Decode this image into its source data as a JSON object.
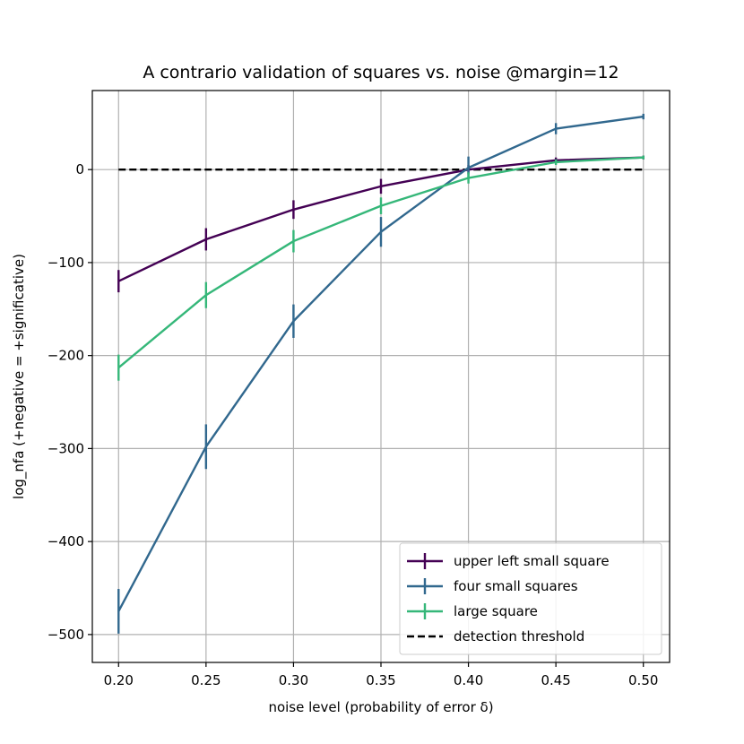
{
  "chart_data": {
    "type": "line",
    "title": "A contrario validation of squares vs. noise @margin=12",
    "xlabel": "noise level (probability of error δ)",
    "ylabel": "log_nfa (+negative = +significative)",
    "x": [
      0.2,
      0.25,
      0.3,
      0.35,
      0.4,
      0.45,
      0.5
    ],
    "x_tick_labels": [
      "0.20",
      "0.25",
      "0.30",
      "0.35",
      "0.40",
      "0.45",
      "0.50"
    ],
    "y_ticks": [
      0,
      -100,
      -200,
      -300,
      -400,
      -500
    ],
    "y_tick_labels": [
      "0",
      "−100",
      "−200",
      "−300",
      "−400",
      "−500"
    ],
    "xlim": [
      0.185,
      0.515
    ],
    "ylim": [
      -530,
      85
    ],
    "grid": true,
    "legend_position": "lower-right",
    "series": [
      {
        "name": "upper left small square",
        "color": "#440154",
        "values": [
          -120,
          -75,
          -43,
          -18,
          0,
          10,
          13
        ],
        "errors": [
          12,
          12,
          10,
          8,
          5,
          3,
          2
        ]
      },
      {
        "name": "four small squares",
        "color": "#31688e",
        "values": [
          -475,
          -298,
          -163,
          -67,
          2,
          44,
          57
        ],
        "errors": [
          24,
          24,
          18,
          16,
          12,
          6,
          3
        ]
      },
      {
        "name": "large square",
        "color": "#35b779",
        "values": [
          -213,
          -135,
          -77,
          -39,
          -9,
          8,
          13
        ],
        "errors": [
          14,
          14,
          12,
          9,
          6,
          3,
          2
        ]
      }
    ],
    "threshold": {
      "name": "detection threshold",
      "value": 0,
      "color": "#000000"
    }
  }
}
